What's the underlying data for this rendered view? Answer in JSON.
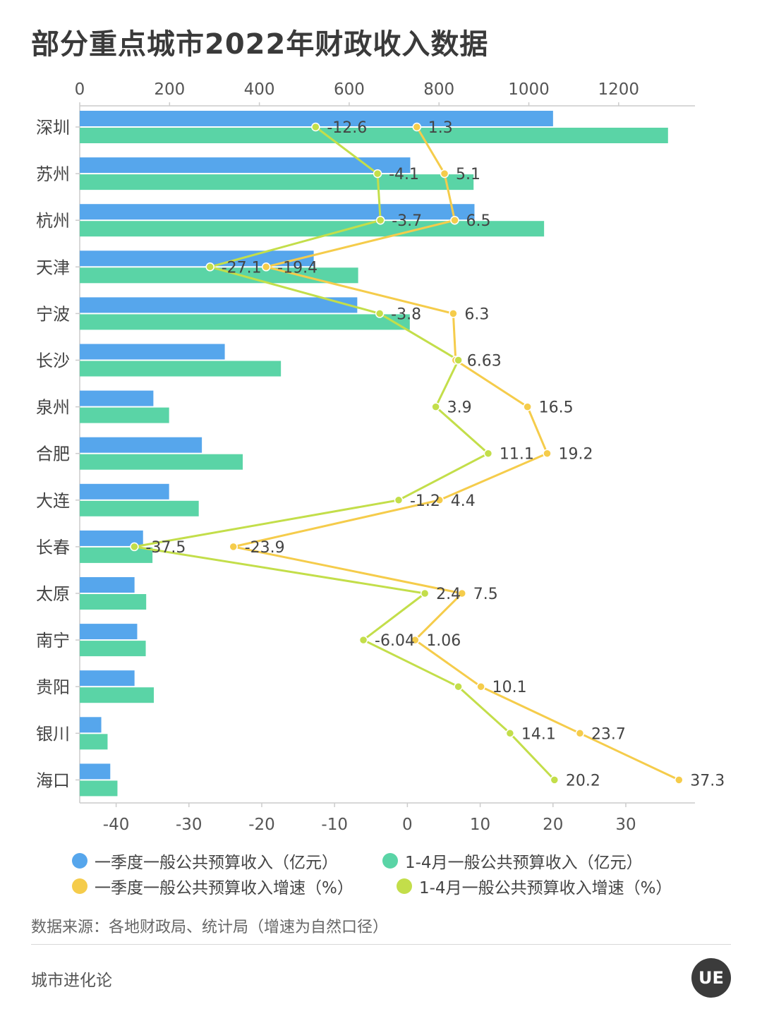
{
  "title": "部分重点城市2022年财政收入数据",
  "chart_data": {
    "type": "bar",
    "orientation": "horizontal",
    "categories": [
      "深圳",
      "苏州",
      "杭州",
      "天津",
      "宁波",
      "长沙",
      "泉州",
      "合肥",
      "大连",
      "长春",
      "太原",
      "南宁",
      "贵阳",
      "银川",
      "海口"
    ],
    "top_axis": {
      "range": [
        0,
        1370
      ],
      "ticks": [
        0,
        200,
        400,
        600,
        800,
        1000,
        1200
      ]
    },
    "bottom_axis": {
      "range": [
        -45,
        39.5
      ],
      "ticks": [
        -40,
        -30,
        -20,
        -10,
        0,
        10,
        20,
        30
      ]
    },
    "bar_series": [
      {
        "name": "一季度一般公共预算收入（亿元）",
        "color": "#56a6ec",
        "values": [
          1054,
          736,
          879,
          521,
          618,
          323,
          164,
          272,
          199,
          141,
          122,
          128,
          122,
          48,
          68
        ]
      },
      {
        "name": "1-4月一般公共预算收入（亿元）",
        "color": "#5ad4a6",
        "values": [
          1310,
          877,
          1034,
          620,
          735,
          448,
          199,
          363,
          265,
          162,
          148,
          147,
          165,
          62,
          84
        ]
      }
    ],
    "line_series": [
      {
        "name": "一季度一般公共预算收入增速（%）",
        "color": "#f5cc4b",
        "values": [
          1.3,
          5.1,
          6.5,
          -19.4,
          6.3,
          6.63,
          16.5,
          19.2,
          4.4,
          -23.9,
          7.5,
          1.06,
          10.1,
          23.7,
          37.3
        ],
        "labels": [
          "1.3",
          "5.1",
          "6.5",
          "-19.4",
          "6.3",
          "6.63",
          "16.5",
          "19.2",
          "4.4",
          "-23.9",
          "7.5",
          "1.06",
          "10.1",
          "23.7",
          "37.3"
        ],
        "show_label": [
          true,
          true,
          true,
          true,
          true,
          true,
          true,
          true,
          true,
          true,
          true,
          true,
          true,
          true,
          true
        ]
      },
      {
        "name": "1-4月一般公共预算收入增速（%）",
        "color": "#c3de4a",
        "values": [
          -12.6,
          -4.1,
          -3.7,
          -27.1,
          -3.8,
          7.0,
          3.9,
          11.1,
          -1.2,
          -37.5,
          2.4,
          -6.04,
          7.0,
          14.1,
          20.2
        ],
        "labels": [
          "-12.6",
          "-4.1",
          "-3.7",
          "-27.1",
          "-3.8",
          "",
          "3.9",
          "11.1",
          "-1.2",
          "-37.5",
          "2.4",
          "-6.04",
          "",
          "14.1",
          "20.2"
        ],
        "show_label": [
          true,
          true,
          true,
          true,
          true,
          false,
          true,
          true,
          true,
          true,
          true,
          true,
          false,
          true,
          true
        ]
      }
    ]
  },
  "legend": [
    {
      "label": "一季度一般公共预算收入（亿元）",
      "color": "#56a6ec"
    },
    {
      "label": "1-4月一般公共预算收入（亿元）",
      "color": "#5ad4a6"
    },
    {
      "label": "一季度一般公共预算收入增速（%）",
      "color": "#f5cc4b"
    },
    {
      "label": "1-4月一般公共预算收入增速（%）",
      "color": "#c3de4a"
    }
  ],
  "source": "数据来源：各地财政局、统计局（增速为自然口径）",
  "brand": "城市进化论",
  "logo_text": "UE"
}
